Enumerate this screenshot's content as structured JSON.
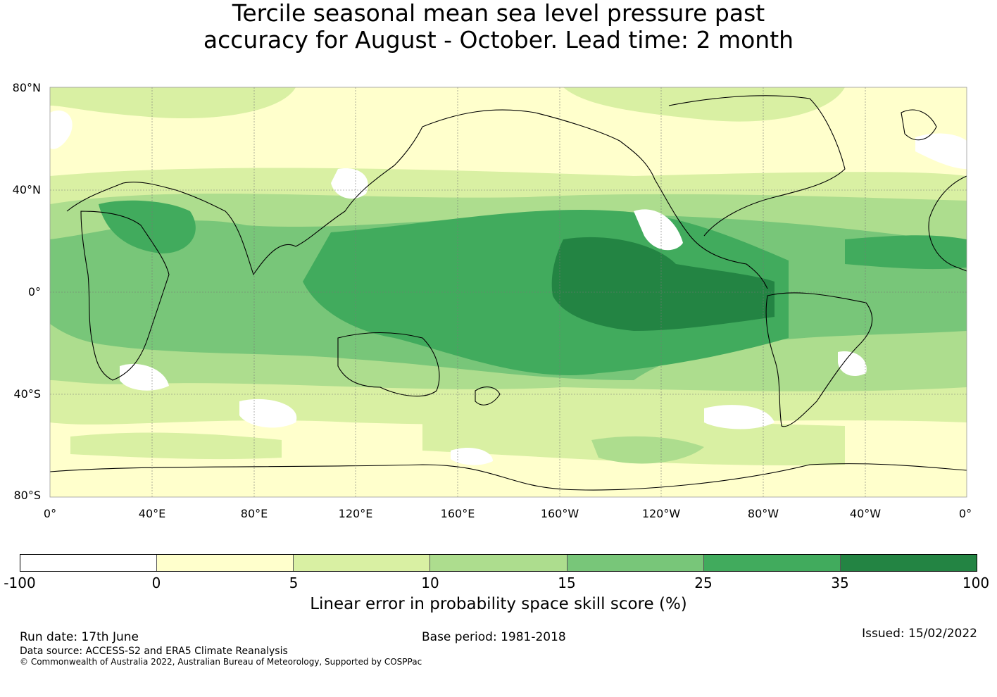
{
  "title": {
    "line1": "Tercile seasonal mean sea level pressure past",
    "line2": "accuracy for August - October. Lead time: 2 month"
  },
  "map": {
    "lat_labels": [
      "80°N",
      "40°N",
      "0°",
      "40°S",
      "80°S"
    ],
    "lon_labels": [
      "0°",
      "40°E",
      "80°E",
      "120°E",
      "160°E",
      "160°W",
      "120°W",
      "80°W",
      "40°W",
      "0°"
    ]
  },
  "colorbar": {
    "title": "Linear error in probability space skill score (%)",
    "ticks": [
      "-100",
      "0",
      "5",
      "10",
      "15",
      "25",
      "35",
      "100"
    ],
    "colors": [
      "#ffffff",
      "#ffffcc",
      "#d9f0a3",
      "#addd8e",
      "#78c679",
      "#41ab5d",
      "#238443"
    ]
  },
  "footer": {
    "run_date": "Run date: 17th June",
    "base_period": "Base period: 1981-2018",
    "issued": "Issued: 15/02/2022",
    "data_source": "Data source: ACCESS-S2 and ERA5 Climate Reanalysis",
    "copyright": "© Commonwealth of Australia 2022, Australian Bureau of Meteorology, Supported by COSPPac"
  }
}
